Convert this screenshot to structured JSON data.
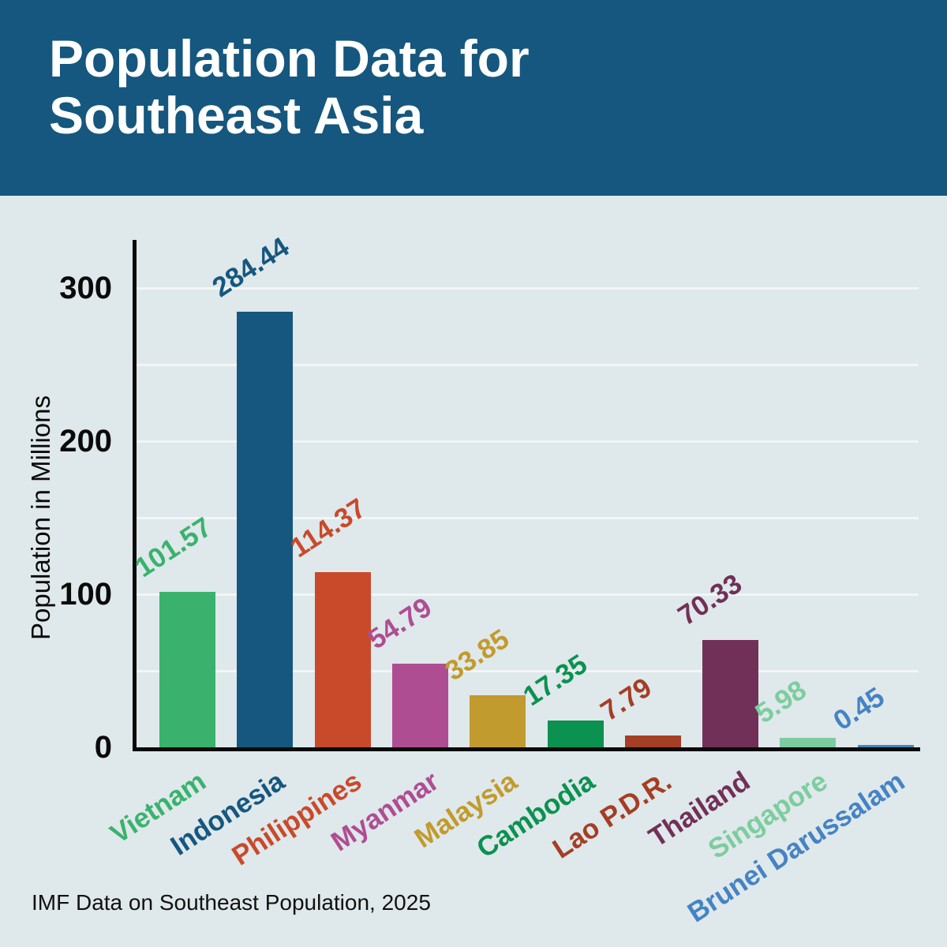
{
  "header": {
    "title_line1": "Population Data for",
    "title_line2": "Southeast Asia",
    "bg_color": "#15577E",
    "text_color": "#FFFFFF"
  },
  "footer": {
    "source": "IMF Data on Southeast Population, 2025"
  },
  "colors": {
    "page_background": "#DFE8EB",
    "gridline": "#F1F6F7",
    "axis": "#0A0A0A"
  },
  "chart_data": {
    "type": "bar",
    "title": "Population Data for Southeast Asia",
    "xlabel": "",
    "ylabel": "Population in Millions",
    "ylim": [
      0,
      330
    ],
    "yticks": [
      0,
      100,
      200,
      300
    ],
    "gridline_step": 50,
    "grid": true,
    "legend": false,
    "categories": [
      "Vietnam",
      "Indonesia",
      "Philippines",
      "Myanmar",
      "Malaysia",
      "Cambodia",
      "Lao P.D.R.",
      "Thailand",
      "Singapore",
      "Brunei Darussalam"
    ],
    "values": [
      101.57,
      284.44,
      114.37,
      54.79,
      33.85,
      17.35,
      7.79,
      70.33,
      5.98,
      0.45
    ],
    "value_labels": [
      "101.57",
      "284.44",
      "114.37",
      "54.79",
      "33.85",
      "17.35",
      "7.79",
      "70.33",
      "5.98",
      "0.45"
    ],
    "bar_colors": [
      "#3AB26D",
      "#15577E",
      "#C84A2B",
      "#AF4D92",
      "#C19B2D",
      "#0B9150",
      "#A43E24",
      "#713057",
      "#7CCD9E",
      "#4583C3"
    ]
  }
}
